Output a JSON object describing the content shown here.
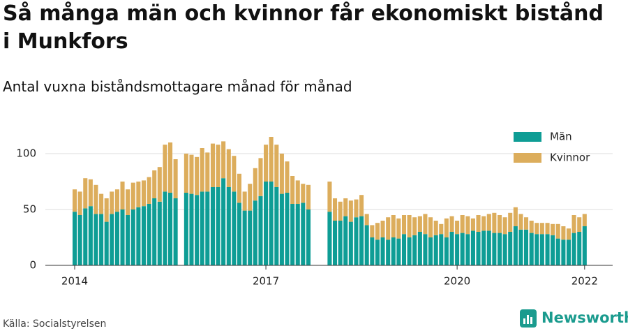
{
  "chart_data": {
    "type": "stacked_bar",
    "title": "Så många män och kvinnor får ekonomiskt bistånd i Munkfors",
    "subtitle": "Antal vuxna biståndsmottagare månad för månad",
    "source": "Källa: Socialstyrelsen",
    "brand": "Newsworthy",
    "x": [
      2014.0,
      2014.083,
      2014.167,
      2014.25,
      2014.333,
      2014.417,
      2014.5,
      2014.583,
      2014.667,
      2014.75,
      2014.833,
      2014.917,
      2015.0,
      2015.083,
      2015.167,
      2015.25,
      2015.333,
      2015.417,
      2015.5,
      2015.583,
      2015.667,
      2015.75,
      2015.833,
      2015.917,
      2016.0,
      2016.083,
      2016.167,
      2016.25,
      2016.333,
      2016.417,
      2016.5,
      2016.583,
      2016.667,
      2016.75,
      2016.833,
      2016.917,
      2017.0,
      2017.083,
      2017.167,
      2017.25,
      2017.333,
      2017.417,
      2017.5,
      2017.583,
      2017.667,
      2017.75,
      2017.833,
      2017.917,
      2018.0,
      2018.083,
      2018.167,
      2018.25,
      2018.333,
      2018.417,
      2018.5,
      2018.583,
      2018.667,
      2018.75,
      2018.833,
      2018.917,
      2019.0,
      2019.083,
      2019.167,
      2019.25,
      2019.333,
      2019.417,
      2019.5,
      2019.583,
      2019.667,
      2019.75,
      2019.833,
      2019.917,
      2020.0,
      2020.083,
      2020.167,
      2020.25,
      2020.333,
      2020.417,
      2020.5,
      2020.583,
      2020.667,
      2020.75,
      2020.833,
      2020.917,
      2021.0,
      2021.083,
      2021.167,
      2021.25,
      2021.333,
      2021.417,
      2021.5,
      2021.583,
      2021.667,
      2021.75,
      2021.833,
      2021.917,
      2022.0
    ],
    "series": [
      {
        "name": "Män",
        "color": "#0e9d95",
        "values": [
          48,
          45,
          51,
          53,
          46,
          46,
          39,
          46,
          48,
          50,
          45,
          50,
          52,
          53,
          55,
          60,
          57,
          66,
          65,
          60,
          null,
          65,
          64,
          63,
          66,
          66,
          70,
          70,
          78,
          70,
          66,
          56,
          49,
          49,
          58,
          62,
          75,
          75,
          70,
          64,
          65,
          55,
          55,
          56,
          50,
          null,
          null,
          null,
          48,
          40,
          40,
          44,
          39,
          43,
          44,
          36,
          25,
          23,
          25,
          23,
          25,
          24,
          28,
          25,
          27,
          30,
          28,
          25,
          27,
          28,
          25,
          30,
          28,
          29,
          28,
          31,
          30,
          31,
          31,
          29,
          29,
          28,
          30,
          35,
          32,
          32,
          29,
          28,
          28,
          28,
          27,
          24,
          23,
          23,
          29,
          30,
          35
        ]
      },
      {
        "name": "Kvinnor",
        "color": "#dcad5c",
        "values": [
          20,
          21,
          27,
          24,
          26,
          18,
          21,
          20,
          20,
          25,
          23,
          24,
          23,
          23,
          24,
          25,
          31,
          42,
          45,
          35,
          null,
          35,
          35,
          34,
          39,
          35,
          39,
          38,
          33,
          34,
          32,
          26,
          17,
          24,
          29,
          34,
          33,
          40,
          38,
          36,
          28,
          25,
          21,
          17,
          22,
          null,
          null,
          null,
          27,
          20,
          17,
          16,
          19,
          16,
          19,
          10,
          11,
          15,
          15,
          20,
          20,
          18,
          17,
          20,
          16,
          14,
          18,
          18,
          13,
          9,
          17,
          14,
          12,
          16,
          16,
          11,
          15,
          13,
          15,
          18,
          16,
          15,
          17,
          17,
          14,
          11,
          11,
          10,
          10,
          10,
          10,
          13,
          12,
          10,
          16,
          13,
          11
        ]
      }
    ],
    "xlim": [
      2013.54,
      2022.44
    ],
    "xticks": [
      2014,
      2017,
      2020,
      2022
    ],
    "ylim": [
      0,
      125
    ],
    "yticks": [
      0,
      50,
      100
    ],
    "grid": true,
    "legend": "upper right"
  }
}
